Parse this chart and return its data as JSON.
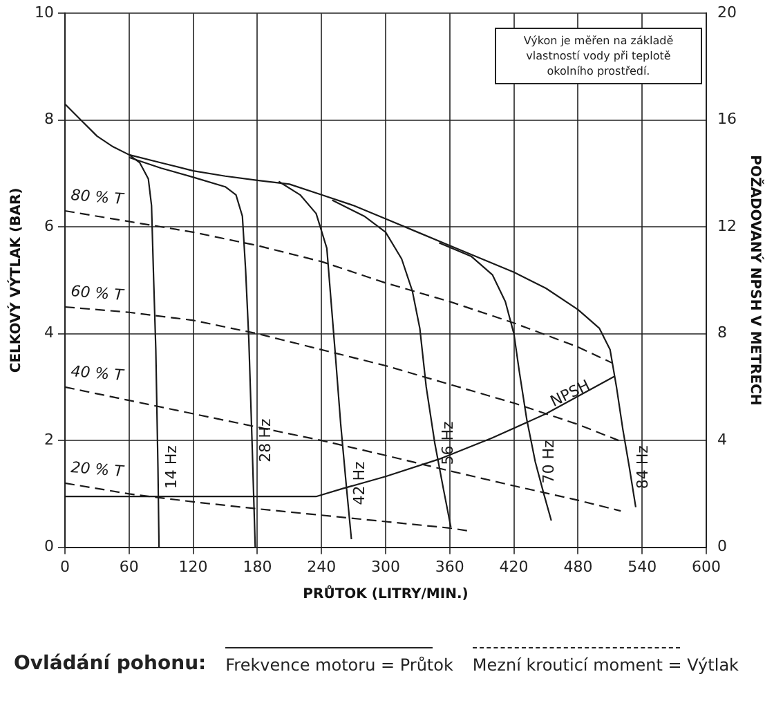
{
  "chart_data": {
    "type": "line",
    "xlabel": "PRŮTOK (LITRY/MIN.)",
    "ylabel": "CELKOVÝ VÝTLAK (BAR)",
    "y2label": "POŽADOVANÝ NPSH V METRECH",
    "xlim": [
      0,
      600
    ],
    "xticks": [
      0,
      60,
      120,
      180,
      240,
      300,
      360,
      420,
      480,
      540,
      600
    ],
    "ylim": [
      0,
      10
    ],
    "yticks": [
      0,
      2,
      4,
      6,
      8,
      10
    ],
    "y2lim": [
      0,
      20
    ],
    "y2ticks": [
      0,
      4,
      8,
      12,
      16,
      20
    ],
    "grid": true,
    "legend": false,
    "marker": "none",
    "line_style": "solid",
    "annotations": [
      "Výkon je měřen na základě vlastností vody při teplotě okolního prostředí.",
      "Ovládání pohonu:",
      "Frekvence motoru = Průtok",
      "Mezní krouticí moment = Výtlak"
    ],
    "series": [
      {
        "name": "14 Hz",
        "color": "#1a1a1a",
        "x": [
          60,
          70,
          78,
          81,
          83,
          85,
          87,
          88
        ],
        "values": [
          7.35,
          7.2,
          6.9,
          6.4,
          5.0,
          3.7,
          1.5,
          0
        ]
      },
      {
        "name": "28 Hz",
        "color": "#1a1a1a",
        "x": [
          60,
          90,
          120,
          150,
          160,
          166,
          169,
          172,
          175,
          178
        ],
        "values": [
          7.3,
          7.1,
          6.93,
          6.75,
          6.6,
          6.2,
          5.2,
          3.9,
          2.0,
          0
        ]
      },
      {
        "name": "42 Hz",
        "color": "#1a1a1a",
        "x": [
          200,
          220,
          235,
          245,
          249,
          253,
          258,
          263,
          268
        ],
        "values": [
          6.85,
          6.6,
          6.25,
          5.6,
          4.6,
          3.6,
          2.3,
          1.2,
          0.15
        ]
      },
      {
        "name": "56 Hz",
        "color": "#1a1a1a",
        "x": [
          250,
          280,
          300,
          315,
          325,
          332,
          338,
          346,
          354,
          361
        ],
        "values": [
          6.5,
          6.2,
          5.9,
          5.4,
          4.8,
          4.1,
          3.0,
          1.95,
          1.1,
          0.38
        ]
      },
      {
        "name": "70 Hz",
        "color": "#1a1a1a",
        "x": [
          350,
          380,
          400,
          412,
          420,
          425,
          432,
          440,
          448,
          455
        ],
        "values": [
          5.7,
          5.45,
          5.1,
          4.6,
          4.0,
          3.3,
          2.4,
          1.6,
          1.0,
          0.5
        ]
      },
      {
        "name": "84 Hz",
        "color": "#1a1a1a",
        "x": [
          0,
          15,
          30,
          45,
          60,
          90,
          120,
          150,
          180,
          210,
          240,
          270,
          300,
          330,
          360,
          390,
          420,
          450,
          480,
          500,
          510,
          516,
          522,
          528,
          534
        ],
        "values": [
          8.3,
          8.0,
          7.7,
          7.5,
          7.35,
          7.2,
          7.05,
          6.95,
          6.87,
          6.8,
          6.6,
          6.4,
          6.15,
          5.9,
          5.65,
          5.4,
          5.15,
          4.85,
          4.45,
          4.1,
          3.7,
          3.0,
          2.2,
          1.5,
          0.75
        ]
      },
      {
        "name": "80 % T",
        "color": "#1a1a1a",
        "line_style": "dashed",
        "x": [
          0,
          60,
          120,
          180,
          240,
          300,
          360,
          420,
          480,
          512
        ],
        "values": [
          6.3,
          6.1,
          5.9,
          5.65,
          5.35,
          4.95,
          4.6,
          4.2,
          3.75,
          3.45
        ]
      },
      {
        "name": "60 % T",
        "color": "#1a1a1a",
        "line_style": "dashed",
        "x": [
          0,
          60,
          120,
          180,
          240,
          300,
          360,
          420,
          480,
          518
        ],
        "values": [
          4.5,
          4.4,
          4.25,
          4.0,
          3.7,
          3.4,
          3.05,
          2.7,
          2.3,
          2.0
        ]
      },
      {
        "name": "40 % T",
        "color": "#1a1a1a",
        "line_style": "dashed",
        "x": [
          0,
          60,
          120,
          180,
          240,
          300,
          360,
          420,
          480,
          520
        ],
        "values": [
          3.0,
          2.75,
          2.5,
          2.25,
          2.0,
          1.72,
          1.43,
          1.15,
          0.88,
          0.68
        ]
      },
      {
        "name": "20 % T",
        "color": "#1a1a1a",
        "line_style": "dashed",
        "x": [
          0,
          60,
          120,
          180,
          240,
          300,
          360,
          380
        ],
        "values": [
          1.2,
          1.0,
          0.85,
          0.72,
          0.6,
          0.48,
          0.36,
          0.3
        ]
      },
      {
        "name": "NPSH",
        "color": "#1a1a1a",
        "axis": "y2",
        "x": [
          0,
          235,
          260,
          300,
          350,
          400,
          450,
          514
        ],
        "values": [
          1.9,
          1.9,
          2.2,
          2.65,
          3.3,
          4.1,
          5.0,
          6.4
        ]
      }
    ]
  }
}
